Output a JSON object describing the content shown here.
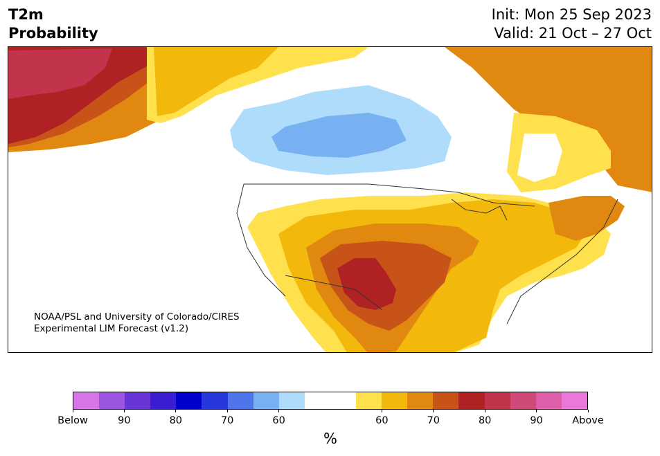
{
  "header": {
    "title_line1": "T2m",
    "title_line2": "Probability",
    "init": "Init: Mon 25 Sep 2023",
    "valid": "Valid: 21 Oct – 27 Oct"
  },
  "credit": {
    "line1": "NOAA/PSL and University of Colorado/CIRES",
    "line2": "Experimental LIM Forecast (v1.2)"
  },
  "colorbar": {
    "colors": [
      "#d674e8",
      "#9b55e0",
      "#6a35d6",
      "#3a1dd2",
      "#0000cd",
      "#2637dc",
      "#4f73e8",
      "#77b1f2",
      "#b0dcfb",
      "#ffffff",
      "#ffffff",
      "#ffe04d",
      "#f2b90c",
      "#e0880f",
      "#c75318",
      "#b02124",
      "#c1344c",
      "#cd4a79",
      "#dd5fa9",
      "#e978d9"
    ],
    "tick_labels": [
      "Below",
      "90",
      "80",
      "70",
      "60",
      "60",
      "70",
      "80",
      "90",
      "Above"
    ],
    "unit_label": "%"
  },
  "map": {
    "category_colors": {
      "above_50_60": "#ffe04d",
      "above_60_70": "#f2b90c",
      "above_70_80": "#e0880f",
      "above_80_90": "#c75318",
      "above_90_100": "#b02124",
      "above_top": "#c1344c",
      "below_50_60": "#b0dcfb",
      "below_60_70": "#77b1f2",
      "neutral": "#ffffff",
      "border": "#333333"
    }
  }
}
